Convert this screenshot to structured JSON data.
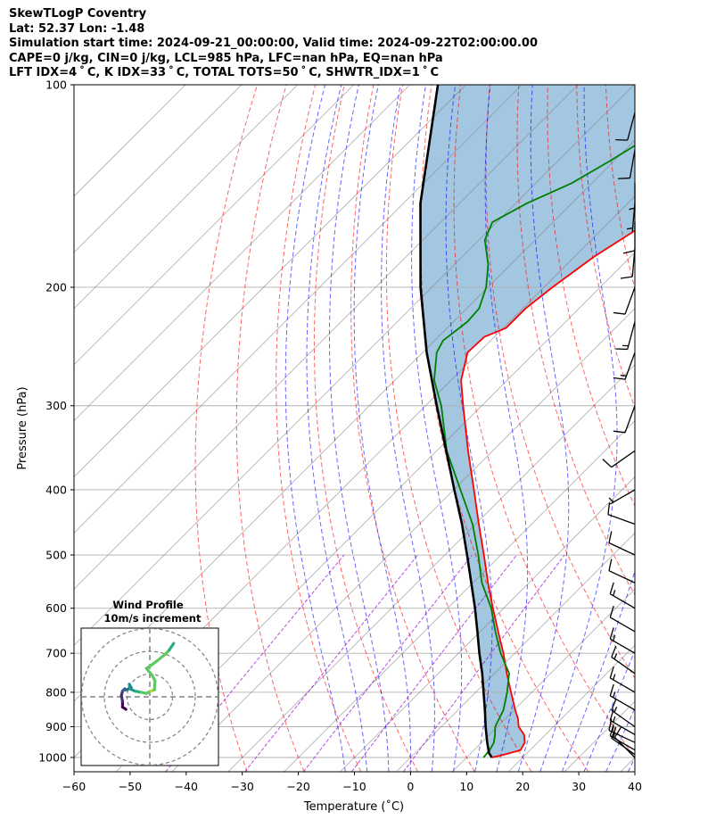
{
  "header": {
    "line1": "SkewTLogP Coventry",
    "line2": "Lat: 52.37   Lon: -1.48",
    "line3": "Simulation start time: 2024-09-21_00:00:00, Valid time: 2024-09-22T02:00:00.00",
    "line4": "CAPE=0 j/kg, CIN=0 j/kg, LCL=985 hPa, LFC=nan hPa, EQ=nan hPa",
    "line5": "LFT IDX=4$^\\circ$C, K IDX=33$^\\circ$C, TOTAL TOTS=50$^\\circ$C, SHWTR_IDX=1$^\\circ$C"
  },
  "header_display": {
    "line5": "LFT IDX=4 ˚ C, K IDX=33 ˚ C, TOTAL TOTS=50 ˚ C, SHWTR_IDX=1 ˚ C"
  },
  "axes": {
    "xlabel": "Temperature ($^\\circ$C)",
    "xlabel_display": "Temperature (˚C)",
    "ylabel": "Pressure (hPa)",
    "x_ticks": [
      -60,
      -50,
      -40,
      -30,
      -20,
      -10,
      0,
      10,
      20,
      30,
      40
    ],
    "y_ticks": [
      1000,
      900,
      800,
      700,
      600,
      500,
      400,
      300,
      200,
      100
    ]
  },
  "inset": {
    "title": "Wind Profile",
    "subtitle": "10m/s increment"
  },
  "colors": {
    "temperature": "#ff0000",
    "dewpoint": "#008000",
    "parcel": "#000000",
    "cape_fill": "#7fb0d6",
    "dry_adiabat": "#ff0000",
    "moist_adiabat": "#0000ff",
    "mixing_ratio": "#9400d3",
    "isotherm": "#808080"
  },
  "chart_data": {
    "type": "line",
    "xlim": [
      -60,
      40
    ],
    "ylim": [
      1050,
      100
    ],
    "y_scale": "log",
    "skew": "skew-T log-P",
    "grid": true,
    "series": [
      {
        "key": "temperature",
        "pressure": [
          1000,
          990,
          975,
          950,
          925,
          900,
          875,
          850,
          800,
          750,
          700,
          650,
          600,
          550,
          500,
          450,
          400,
          350,
          300,
          275,
          250,
          237,
          230,
          215,
          200,
          180,
          160,
          140,
          130,
          120,
          110,
          100
        ],
        "values": [
          14.5,
          16.2,
          18.3,
          17.7,
          16.2,
          13.8,
          12.2,
          10.2,
          6.3,
          2.2,
          -2.0,
          -6.8,
          -11.9,
          -17.3,
          -23.0,
          -29.4,
          -36.4,
          -44.4,
          -53.3,
          -58.2,
          -62.0,
          -61.8,
          -59.5,
          -59.5,
          -58.5,
          -56.5,
          -53.0,
          -50.0,
          -49.0,
          -47.2,
          -45.7,
          -44.8
        ]
      },
      {
        "key": "dewpoint",
        "pressure": [
          1000,
          975,
          950,
          925,
          900,
          850,
          800,
          750,
          700,
          650,
          600,
          550,
          500,
          450,
          400,
          350,
          300,
          275,
          250,
          240,
          225,
          215,
          200,
          185,
          170,
          160,
          150,
          140,
          130,
          120,
          110,
          100
        ],
        "values": [
          13.0,
          12.8,
          12.2,
          11.0,
          9.6,
          8.1,
          5.6,
          2.6,
          -2.5,
          -7.3,
          -12.2,
          -18.4,
          -24.0,
          -30.5,
          -38.8,
          -48.2,
          -57.2,
          -63.0,
          -67.5,
          -68.5,
          -67.5,
          -67.8,
          -70.3,
          -74.0,
          -79.0,
          -80.8,
          -78.0,
          -73.6,
          -70.8,
          -68.2,
          -66.1,
          -64.7
        ]
      },
      {
        "key": "parcel",
        "pressure": [
          1000,
          985,
          950,
          900,
          850,
          800,
          750,
          700,
          650,
          600,
          550,
          500,
          450,
          400,
          350,
          300,
          250,
          200,
          150,
          100
        ],
        "values": [
          14.5,
          13.2,
          11.0,
          7.9,
          4.8,
          1.4,
          -2.2,
          -6.3,
          -10.5,
          -15.1,
          -20.3,
          -26.0,
          -32.4,
          -39.9,
          -48.3,
          -58.0,
          -69.3,
          -82.0,
          -97.0,
          -115.0
        ]
      }
    ],
    "wind_barbs": {
      "units": "knots",
      "pressure": [
        1000,
        990,
        975,
        950,
        925,
        900,
        850,
        800,
        750,
        700,
        650,
        600,
        550,
        500,
        450,
        400,
        350,
        300,
        250,
        225,
        200,
        175,
        160,
        150,
        140,
        125,
        110
      ],
      "speed": [
        9,
        12,
        14,
        17,
        15,
        13,
        13,
        14,
        15,
        14,
        12,
        13,
        11,
        11,
        10,
        7,
        8,
        12,
        13,
        14,
        8,
        12,
        10,
        5,
        5,
        8,
        12
      ],
      "direction_deg": [
        315,
        305,
        300,
        295,
        300,
        305,
        300,
        300,
        305,
        300,
        300,
        300,
        295,
        295,
        290,
        240,
        235,
        200,
        200,
        195,
        200,
        185,
        180,
        185,
        180,
        190,
        195
      ]
    },
    "hodograph": {
      "title": "Wind Profile",
      "subtitle": "10m/s increment",
      "rings_m_s": [
        10,
        20,
        30
      ],
      "colormap": "viridis",
      "u": [
        -10.5,
        -12.0,
        -12.0,
        -12.5,
        -12.0,
        -11.0,
        -10.5,
        -8.2,
        -9.0,
        -8.8,
        -6.5,
        -3.8,
        -1.5,
        0.3,
        2.0,
        2.3,
        1.0,
        -1.5,
        0.8,
        3.5,
        6.5,
        8.5,
        10.5
      ],
      "v": [
        -5.5,
        -4.5,
        -2.0,
        0.5,
        2.5,
        3.5,
        3.0,
        4.0,
        5.5,
        3.5,
        2.5,
        2.0,
        1.5,
        2.5,
        3.0,
        7.0,
        9.5,
        12.5,
        14.0,
        16.0,
        18.5,
        20.5,
        23.5
      ]
    }
  }
}
